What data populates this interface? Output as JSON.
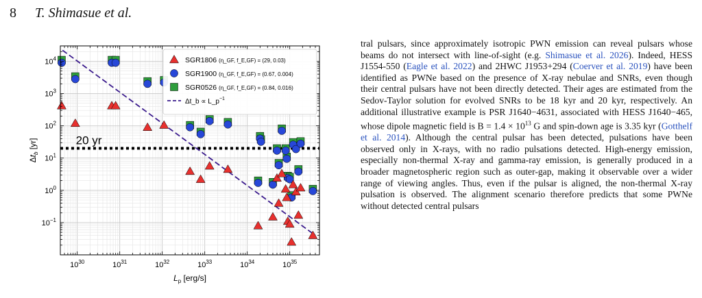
{
  "header": {
    "page_number": "8",
    "authors": "T. Shimasue et al."
  },
  "chart_data": {
    "type": "scatter",
    "xscale": "log",
    "yscale": "log",
    "xlim": [
      4e+29,
      5e+35
    ],
    "ylim": [
      0.01,
      30000
    ],
    "grid": true,
    "xlabel": "L_p [erg/s]",
    "ylabel": "Δt_b [yr]",
    "xticks": [
      {
        "v": 1e+30,
        "b": "10",
        "e": "30"
      },
      {
        "v": 1e+31,
        "b": "10",
        "e": "31"
      },
      {
        "v": 1e+32,
        "b": "10",
        "e": "32"
      },
      {
        "v": 1e+33,
        "b": "10",
        "e": "33"
      },
      {
        "v": 1e+34,
        "b": "10",
        "e": "34"
      },
      {
        "v": 1e+35,
        "b": "10",
        "e": "35"
      }
    ],
    "yticks": [
      {
        "v": 0.1,
        "b": "10",
        "e": "−1"
      },
      {
        "v": 1,
        "b": "10",
        "e": "0"
      },
      {
        "v": 10,
        "b": "10",
        "e": "1"
      },
      {
        "v": 100,
        "b": "10",
        "e": "2"
      },
      {
        "v": 1000,
        "b": "10",
        "e": "3"
      },
      {
        "v": 10000,
        "b": "10",
        "e": "4"
      }
    ],
    "legend_position": "top-right",
    "hline": {
      "y": 20,
      "label": "20 yr"
    },
    "trend_line": {
      "label_main": "Δt_b ∝ L_p",
      "label_exp": "−1",
      "x1": 4.5e+29,
      "y1": 22000,
      "x2": 4e+35,
      "y2": 0.04,
      "color": "#3a1a8c"
    },
    "series": [
      {
        "name": "SGR1806",
        "params": "(η_GF, f_E,GF) = (29, 0.03)",
        "marker": "triangle",
        "color": "#e8302e",
        "points": [
          [
            4.3e+29,
            420
          ],
          [
            9e+29,
            120
          ],
          [
            6.5e+30,
            420
          ],
          [
            8e+30,
            420
          ],
          [
            4.5e+31,
            90
          ],
          [
            1.1e+32,
            105
          ],
          [
            4.5e+32,
            3.9
          ],
          [
            8e+32,
            2.2
          ],
          [
            1.3e+33,
            5.7
          ],
          [
            3.5e+33,
            4.5
          ],
          [
            1.8e+34,
            0.08
          ],
          [
            4e+34,
            0.15
          ],
          [
            5e+34,
            2.4
          ],
          [
            5.5e+34,
            0.4
          ],
          [
            6.5e+34,
            3.3
          ],
          [
            8e+34,
            1.1
          ],
          [
            8.5e+34,
            0.6
          ],
          [
            9e+34,
            0.11
          ],
          [
            1e+35,
            0.09
          ],
          [
            1.1e+35,
            0.025
          ],
          [
            1.2e+35,
            1.5
          ],
          [
            1.4e+35,
            0.9
          ],
          [
            1.6e+35,
            0.17
          ],
          [
            1.8e+35,
            1.2
          ],
          [
            3.5e+35,
            0.04
          ]
        ]
      },
      {
        "name": "SGR1900",
        "params": "(η_GF, f_E,GF) = (0.67, 0.004)",
        "marker": "circle",
        "color": "#2747d8",
        "points": [
          [
            4.3e+29,
            9000
          ],
          [
            9e+29,
            2800
          ],
          [
            6.5e+30,
            9000
          ],
          [
            8e+30,
            9000
          ],
          [
            4.5e+31,
            2000
          ],
          [
            1.1e+32,
            2200
          ],
          [
            4.5e+32,
            90
          ],
          [
            8e+32,
            55
          ],
          [
            1.3e+33,
            140
          ],
          [
            3.5e+33,
            110
          ],
          [
            1.8e+34,
            1.7
          ],
          [
            2e+34,
            40
          ],
          [
            2.1e+34,
            32
          ],
          [
            4e+34,
            1.5
          ],
          [
            5e+34,
            17
          ],
          [
            5.5e+34,
            6
          ],
          [
            6.5e+34,
            70
          ],
          [
            8e+34,
            17
          ],
          [
            8.5e+34,
            9.5
          ],
          [
            9e+34,
            2.4
          ],
          [
            1e+35,
            2.2
          ],
          [
            1.1e+35,
            0.6
          ],
          [
            1.2e+35,
            26
          ],
          [
            1.4e+35,
            19
          ],
          [
            1.6e+35,
            3.8
          ],
          [
            1.8e+35,
            28
          ],
          [
            3.5e+35,
            0.95
          ]
        ]
      },
      {
        "name": "SGR0526",
        "params": "(η_GF, f_E,GF) = (0.84, 0.016)",
        "marker": "square",
        "color": "#2e9e3c",
        "points": [
          [
            4.3e+29,
            11000
          ],
          [
            9e+29,
            3400
          ],
          [
            6.5e+30,
            11000
          ],
          [
            8e+30,
            11000
          ],
          [
            4.5e+31,
            2400
          ],
          [
            1.1e+32,
            2600
          ],
          [
            4.5e+32,
            105
          ],
          [
            8e+32,
            65
          ],
          [
            1.3e+33,
            160
          ],
          [
            3.5e+33,
            130
          ],
          [
            1.8e+34,
            2.0
          ],
          [
            2e+34,
            48
          ],
          [
            2.1e+34,
            38
          ],
          [
            4e+34,
            1.8
          ],
          [
            5e+34,
            20
          ],
          [
            5.5e+34,
            7
          ],
          [
            6.5e+34,
            82
          ],
          [
            8e+34,
            20
          ],
          [
            8.5e+34,
            11
          ],
          [
            9e+34,
            2.8
          ],
          [
            1e+35,
            2.6
          ],
          [
            1.1e+35,
            0.7
          ],
          [
            1.2e+35,
            31
          ],
          [
            1.4e+35,
            23
          ],
          [
            1.6e+35,
            4.5
          ],
          [
            1.8e+35,
            33
          ],
          [
            3.5e+35,
            1.1
          ]
        ]
      }
    ]
  },
  "body_text": {
    "segments": [
      {
        "t": "tral pulsars, since approximately isotropic PWN emission can reveal pulsars whose beams do not intersect with line-of-sight (e.g. "
      },
      {
        "t": "Shimasue et al. 2026",
        "cite": true
      },
      {
        "t": "). Indeed, HESS J1554-550 ("
      },
      {
        "t": "Eagle et al. 2022",
        "cite": true
      },
      {
        "t": ") and 2HWC J1953+294 ("
      },
      {
        "t": "Coerver et al. 2019",
        "cite": true
      },
      {
        "t": ") have been identified as PWNe based on the presence of X-ray nebulae and SNRs, even though their central pulsars have not been directly detected. Their ages are estimated from the Sedov-Taylor solution for evolved SNRs to be 18 kyr and 20 kyr, respectively. An additional illustrative example is PSR J1640−4631, associated with HESS J1640−465, whose dipole magnetic field is B = 1.4 × 10"
      },
      {
        "t": "13",
        "sup": true
      },
      {
        "t": " G and spin-down age is 3.35 kyr ("
      },
      {
        "t": "Gotthelf et al. 2014",
        "cite": true
      },
      {
        "t": "). Although the central pulsar has been detected, pulsations have been observed only in X-rays, with no radio pulsations detected. High-energy emission, especially non-thermal X-ray and gamma-ray emission, is generally produced in a broader magnetospheric region such as outer-gap, making it observable over a wider range of viewing angles. Thus, even if the pulsar is aligned, the non-thermal X-ray pulsation is observed. The alignment scenario therefore predicts that some PWNe without detected central pulsars"
      }
    ]
  }
}
